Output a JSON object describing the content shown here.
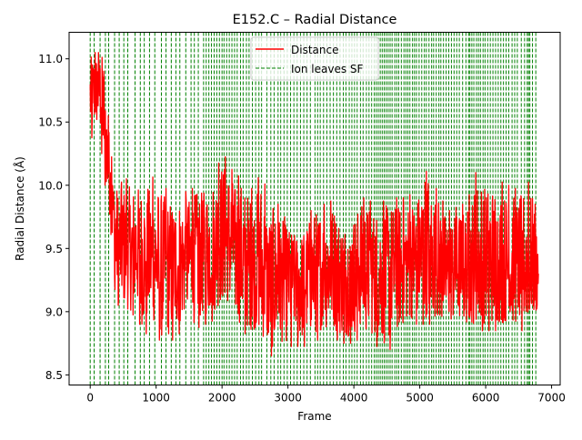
{
  "chart_data": {
    "type": "line",
    "title": "E152.C – Radial Distance",
    "xlabel": "Frame",
    "ylabel": "Radial Distance (Å)",
    "xlim": [
      -320,
      7130
    ],
    "ylim": [
      8.42,
      11.21
    ],
    "xticks": [
      0,
      1000,
      2000,
      3000,
      4000,
      5000,
      6000,
      7000
    ],
    "xtick_labels": [
      "0",
      "1000",
      "2000",
      "3000",
      "4000",
      "5000",
      "6000",
      "7000"
    ],
    "yticks": [
      8.5,
      9.0,
      9.5,
      10.0,
      10.5,
      11.0
    ],
    "ytick_labels": [
      "8.5",
      "9.0",
      "9.5",
      "10.0",
      "10.5",
      "11.0"
    ],
    "grid": false,
    "legend": {
      "position": "upper center",
      "entries": [
        {
          "label": "Distance",
          "color": "#ff0000",
          "style": "solid"
        },
        {
          "label": "Ion leaves SF",
          "color": "#008000",
          "style": "dashed"
        }
      ]
    },
    "series": [
      {
        "name": "Distance",
        "color": "#ff0000",
        "x": [
          0,
          50,
          100,
          150,
          200,
          250,
          300,
          350,
          400,
          450,
          500,
          600,
          700,
          800,
          900,
          1000,
          1100,
          1200,
          1300,
          1400,
          1500,
          1600,
          1700,
          1800,
          1900,
          2000,
          2100,
          2200,
          2300,
          2400,
          2500,
          2600,
          2700,
          2800,
          2900,
          3000,
          3100,
          3200,
          3300,
          3400,
          3500,
          3600,
          3700,
          3800,
          3900,
          4000,
          4100,
          4200,
          4300,
          4400,
          4500,
          4600,
          4700,
          4800,
          4900,
          5000,
          5100,
          5200,
          5300,
          5400,
          5500,
          5600,
          5700,
          5800,
          5900,
          6000,
          6100,
          6200,
          6300,
          6400,
          6500,
          6600,
          6700,
          6800
        ],
        "y_mean": [
          10.7,
          10.75,
          10.8,
          10.75,
          10.65,
          10.3,
          10.05,
          9.8,
          9.55,
          9.5,
          9.45,
          9.45,
          9.5,
          9.45,
          9.4,
          9.4,
          9.3,
          9.3,
          9.35,
          9.4,
          9.4,
          9.45,
          9.45,
          9.5,
          9.55,
          9.6,
          9.55,
          9.5,
          9.4,
          9.35,
          9.35,
          9.3,
          9.2,
          9.2,
          9.25,
          9.3,
          9.3,
          9.25,
          9.3,
          9.3,
          9.35,
          9.35,
          9.35,
          9.3,
          9.3,
          9.35,
          9.4,
          9.35,
          9.35,
          9.3,
          9.35,
          9.35,
          9.35,
          9.4,
          9.4,
          9.45,
          9.45,
          9.4,
          9.35,
          9.3,
          9.35,
          9.35,
          9.3,
          9.35,
          9.35,
          9.4,
          9.35,
          9.35,
          9.35,
          9.3,
          9.35,
          9.35,
          9.35,
          9.3
        ],
        "y_min": [
          10.35,
          10.4,
          10.4,
          10.4,
          10.1,
          9.9,
          9.7,
          9.25,
          9.1,
          9.0,
          9.0,
          8.95,
          9.0,
          8.8,
          8.85,
          8.85,
          8.7,
          8.75,
          8.8,
          8.85,
          8.85,
          8.85,
          8.9,
          8.9,
          8.95,
          9.0,
          9.0,
          8.85,
          8.85,
          8.8,
          8.8,
          8.75,
          8.65,
          8.65,
          8.7,
          8.7,
          8.75,
          8.7,
          8.75,
          8.75,
          8.8,
          8.8,
          8.8,
          8.75,
          8.75,
          8.75,
          8.8,
          8.75,
          8.75,
          8.7,
          8.65,
          8.75,
          8.8,
          8.85,
          8.9,
          8.9,
          8.9,
          8.9,
          8.85,
          8.85,
          8.85,
          8.85,
          8.85,
          8.85,
          8.85,
          8.85,
          8.85,
          8.85,
          8.85,
          8.85,
          8.85,
          8.85,
          8.9,
          8.95
        ],
        "y_max": [
          11.05,
          11.05,
          11.05,
          11.05,
          11.08,
          10.7,
          10.4,
          10.05,
          10.05,
          10.0,
          10.05,
          10.05,
          10.05,
          10.05,
          10.05,
          10.08,
          10.0,
          9.95,
          9.95,
          9.95,
          9.95,
          10.0,
          10.0,
          10.05,
          10.1,
          10.25,
          10.2,
          10.05,
          10.1,
          10.0,
          9.95,
          10.17,
          9.85,
          9.9,
          9.8,
          9.7,
          9.65,
          9.65,
          9.75,
          9.85,
          9.85,
          9.85,
          9.9,
          9.75,
          9.75,
          9.8,
          9.9,
          9.9,
          9.85,
          9.85,
          9.9,
          9.9,
          9.9,
          9.9,
          9.95,
          10.0,
          10.3,
          10.0,
          9.95,
          9.8,
          9.8,
          9.85,
          9.85,
          10.0,
          10.2,
          10.05,
          10.1,
          10.05,
          10.0,
          10.0,
          9.95,
          10.05,
          10.0,
          9.7
        ]
      }
    ],
    "events": {
      "name": "Ion leaves SF",
      "color": "#008000",
      "x": [
        0,
        60,
        150,
        230,
        280,
        370,
        440,
        510,
        570,
        680,
        760,
        820,
        900,
        980,
        1080,
        1150,
        1230,
        1300,
        1360,
        1450,
        1530,
        1580,
        1640,
        1720,
        1760,
        1800,
        1840,
        1880,
        1920,
        1960,
        2000,
        2030,
        2070,
        2110,
        2150,
        2190,
        2230,
        2280,
        2320,
        2370,
        2410,
        2460,
        2510,
        2560,
        2600,
        2680,
        2740,
        2790,
        2850,
        2890,
        2940,
        2990,
        3040,
        3090,
        3140,
        3190,
        3240,
        3290,
        3340,
        3410,
        3450,
        3490,
        3540,
        3590,
        3640,
        3690,
        3740,
        3790,
        3840,
        3880,
        3930,
        3970,
        4010,
        4050,
        4100,
        4140,
        4190,
        4230,
        4270,
        4310,
        4340,
        4370,
        4400,
        4430,
        4460,
        4490,
        4520,
        4550,
        4580,
        4620,
        4650,
        4680,
        4720,
        4760,
        4790,
        4820,
        4850,
        4890,
        4920,
        4950,
        4990,
        5030,
        5070,
        5100,
        5140,
        5180,
        5210,
        5250,
        5290,
        5320,
        5360,
        5400,
        5440,
        5480,
        5520,
        5560,
        5600,
        5650,
        5700,
        5740,
        5760,
        5790,
        5820,
        5860,
        5890,
        5920,
        5960,
        5990,
        6030,
        6070,
        6110,
        6150,
        6190,
        6230,
        6270,
        6310,
        6350,
        6400,
        6440,
        6480,
        6540,
        6590,
        6630,
        6650,
        6670,
        6710,
        6760
      ]
    }
  }
}
